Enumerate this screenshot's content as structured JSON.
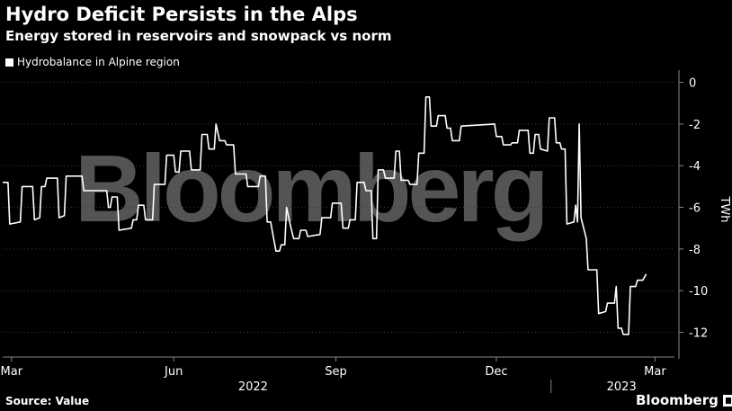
{
  "title": "Hydro Deficit Persists in the Alps",
  "subtitle": "Energy stored in reservoirs and snowpack vs norm",
  "source": "Source: Value",
  "brand": "Bloomberg",
  "watermark": "Bloomberg",
  "colors": {
    "background": "#000000",
    "line": "#ffffff",
    "watermark": "#5e5e5e"
  },
  "chart_data": {
    "type": "line",
    "title": "Hydro Deficit Persists in the Alps",
    "subtitle": "Energy stored in reservoirs and snowpack vs norm",
    "ylabel": "TWh",
    "ylim": [
      -13,
      0
    ],
    "yticks": [
      0,
      -2,
      -4,
      -6,
      -8,
      -10,
      -12
    ],
    "grid": true,
    "legend_position": "top-left",
    "xtick_labels": [
      "Mar",
      "Jun",
      "Sep",
      "Dec",
      "Mar"
    ],
    "xtick_dates": [
      "2022-03-01",
      "2022-06-01",
      "2022-09-01",
      "2022-12-01",
      "2023-03-01"
    ],
    "year_labels": [
      {
        "label": "2022",
        "date": "2022-07-16"
      },
      {
        "label": "2023",
        "date": "2023-02-10"
      }
    ],
    "x_start": "2022-02-24",
    "x_end": "2023-03-12",
    "series": [
      {
        "name": "Hydrobalance in Alpine region",
        "points": [
          [
            "2022-02-24",
            -4.8
          ],
          [
            "2022-02-27",
            -4.8
          ],
          [
            "2022-02-28",
            -6.8
          ],
          [
            "2022-03-06",
            -6.7
          ],
          [
            "2022-03-07",
            -5.0
          ],
          [
            "2022-03-13",
            -5.0
          ],
          [
            "2022-03-14",
            -6.6
          ],
          [
            "2022-03-17",
            -6.5
          ],
          [
            "2022-03-18",
            -5.0
          ],
          [
            "2022-03-20",
            -5.0
          ],
          [
            "2022-03-21",
            -4.6
          ],
          [
            "2022-03-27",
            -4.6
          ],
          [
            "2022-03-28",
            -6.5
          ],
          [
            "2022-03-31",
            -6.4
          ],
          [
            "2022-04-01",
            -4.5
          ],
          [
            "2022-04-10",
            -4.5
          ],
          [
            "2022-04-11",
            -5.2
          ],
          [
            "2022-04-24",
            -5.2
          ],
          [
            "2022-04-25",
            -6.0
          ],
          [
            "2022-04-26",
            -6.0
          ],
          [
            "2022-04-27",
            -5.5
          ],
          [
            "2022-04-30",
            -5.5
          ],
          [
            "2022-05-01",
            -7.1
          ],
          [
            "2022-05-08",
            -7.0
          ],
          [
            "2022-05-09",
            -6.6
          ],
          [
            "2022-05-11",
            -6.6
          ],
          [
            "2022-05-12",
            -5.9
          ],
          [
            "2022-05-15",
            -5.9
          ],
          [
            "2022-05-16",
            -6.6
          ],
          [
            "2022-05-20",
            -6.6
          ],
          [
            "2022-05-21",
            -4.9
          ],
          [
            "2022-05-27",
            -4.9
          ],
          [
            "2022-05-28",
            -3.5
          ],
          [
            "2022-06-01",
            -3.5
          ],
          [
            "2022-06-02",
            -4.3
          ],
          [
            "2022-06-04",
            -4.3
          ],
          [
            "2022-06-05",
            -3.3
          ],
          [
            "2022-06-10",
            -3.3
          ],
          [
            "2022-06-11",
            -4.2
          ],
          [
            "2022-06-16",
            -4.2
          ],
          [
            "2022-06-17",
            -2.5
          ],
          [
            "2022-06-20",
            -2.5
          ],
          [
            "2022-06-21",
            -3.2
          ],
          [
            "2022-06-24",
            -3.2
          ],
          [
            "2022-06-25",
            -2.0
          ],
          [
            "2022-06-27",
            -2.8
          ],
          [
            "2022-06-30",
            -2.8
          ],
          [
            "2022-07-01",
            -3.0
          ],
          [
            "2022-07-05",
            -3.0
          ],
          [
            "2022-07-06",
            -4.4
          ],
          [
            "2022-07-12",
            -4.4
          ],
          [
            "2022-07-13",
            -5.0
          ],
          [
            "2022-07-19",
            -5.0
          ],
          [
            "2022-07-20",
            -4.5
          ],
          [
            "2022-07-23",
            -4.5
          ],
          [
            "2022-07-24",
            -6.7
          ],
          [
            "2022-07-26",
            -6.7
          ],
          [
            "2022-07-27",
            -7.2
          ],
          [
            "2022-07-29",
            -8.1
          ],
          [
            "2022-07-31",
            -8.1
          ],
          [
            "2022-08-01",
            -7.8
          ],
          [
            "2022-08-03",
            -7.8
          ],
          [
            "2022-08-04",
            -6.0
          ],
          [
            "2022-08-06",
            -6.8
          ],
          [
            "2022-08-08",
            -7.5
          ],
          [
            "2022-08-11",
            -7.5
          ],
          [
            "2022-08-12",
            -7.1
          ],
          [
            "2022-08-15",
            -7.1
          ],
          [
            "2022-08-16",
            -7.4
          ],
          [
            "2022-08-23",
            -7.3
          ],
          [
            "2022-08-24",
            -6.5
          ],
          [
            "2022-08-29",
            -6.5
          ],
          [
            "2022-08-30",
            -5.8
          ],
          [
            "2022-09-04",
            -5.8
          ],
          [
            "2022-09-05",
            -7.0
          ],
          [
            "2022-09-08",
            -7.0
          ],
          [
            "2022-09-09",
            -6.6
          ],
          [
            "2022-09-12",
            -6.6
          ],
          [
            "2022-09-13",
            -4.8
          ],
          [
            "2022-09-17",
            -4.8
          ],
          [
            "2022-09-18",
            -5.2
          ],
          [
            "2022-09-21",
            -5.2
          ],
          [
            "2022-09-22",
            -7.5
          ],
          [
            "2022-09-24",
            -7.5
          ],
          [
            "2022-09-25",
            -4.2
          ],
          [
            "2022-09-28",
            -4.2
          ],
          [
            "2022-09-29",
            -4.6
          ],
          [
            "2022-10-04",
            -4.6
          ],
          [
            "2022-10-05",
            -3.3
          ],
          [
            "2022-10-07",
            -3.3
          ],
          [
            "2022-10-08",
            -4.7
          ],
          [
            "2022-10-12",
            -4.7
          ],
          [
            "2022-10-13",
            -4.9
          ],
          [
            "2022-10-17",
            -4.9
          ],
          [
            "2022-10-18",
            -3.4
          ],
          [
            "2022-10-21",
            -3.4
          ],
          [
            "2022-10-22",
            -0.7
          ],
          [
            "2022-10-24",
            -0.7
          ],
          [
            "2022-10-25",
            -2.1
          ],
          [
            "2022-10-28",
            -2.1
          ],
          [
            "2022-10-29",
            -1.6
          ],
          [
            "2022-11-02",
            -1.6
          ],
          [
            "2022-11-03",
            -2.2
          ],
          [
            "2022-11-05",
            -2.2
          ],
          [
            "2022-11-06",
            -2.8
          ],
          [
            "2022-11-10",
            -2.8
          ],
          [
            "2022-11-11",
            -2.1
          ],
          [
            "2022-11-30",
            -2.0
          ],
          [
            "2022-12-01",
            -2.6
          ],
          [
            "2022-12-04",
            -2.6
          ],
          [
            "2022-12-05",
            -3.0
          ],
          [
            "2022-12-09",
            -3.0
          ],
          [
            "2022-12-10",
            -2.9
          ],
          [
            "2022-12-13",
            -2.9
          ],
          [
            "2022-12-14",
            -2.3
          ],
          [
            "2022-12-19",
            -2.3
          ],
          [
            "2022-12-20",
            -3.4
          ],
          [
            "2022-12-22",
            -3.4
          ],
          [
            "2022-12-23",
            -2.5
          ],
          [
            "2022-12-25",
            -2.5
          ],
          [
            "2022-12-26",
            -3.2
          ],
          [
            "2022-12-30",
            -3.3
          ],
          [
            "2022-12-31",
            -1.7
          ],
          [
            "2023-01-03",
            -1.7
          ],
          [
            "2023-01-04",
            -2.9
          ],
          [
            "2023-01-06",
            -2.9
          ],
          [
            "2023-01-07",
            -3.2
          ],
          [
            "2023-01-09",
            -3.2
          ],
          [
            "2023-01-10",
            -6.8
          ],
          [
            "2023-01-14",
            -6.7
          ],
          [
            "2023-01-15",
            -5.9
          ],
          [
            "2023-01-16",
            -6.7
          ],
          [
            "2023-01-17",
            -2.0
          ],
          [
            "2023-01-18",
            -6.5
          ],
          [
            "2023-01-21",
            -7.5
          ],
          [
            "2023-01-22",
            -9.0
          ],
          [
            "2023-01-27",
            -9.0
          ],
          [
            "2023-01-28",
            -11.1
          ],
          [
            "2023-02-01",
            -11.0
          ],
          [
            "2023-02-02",
            -10.6
          ],
          [
            "2023-02-06",
            -10.6
          ],
          [
            "2023-02-07",
            -9.8
          ],
          [
            "2023-02-08",
            -11.8
          ],
          [
            "2023-02-10",
            -11.8
          ],
          [
            "2023-02-11",
            -12.1
          ],
          [
            "2023-02-14",
            -12.1
          ],
          [
            "2023-02-15",
            -9.8
          ],
          [
            "2023-02-18",
            -9.8
          ],
          [
            "2023-02-19",
            -9.5
          ],
          [
            "2023-02-22",
            -9.5
          ],
          [
            "2023-02-24",
            -9.2
          ]
        ]
      }
    ]
  }
}
